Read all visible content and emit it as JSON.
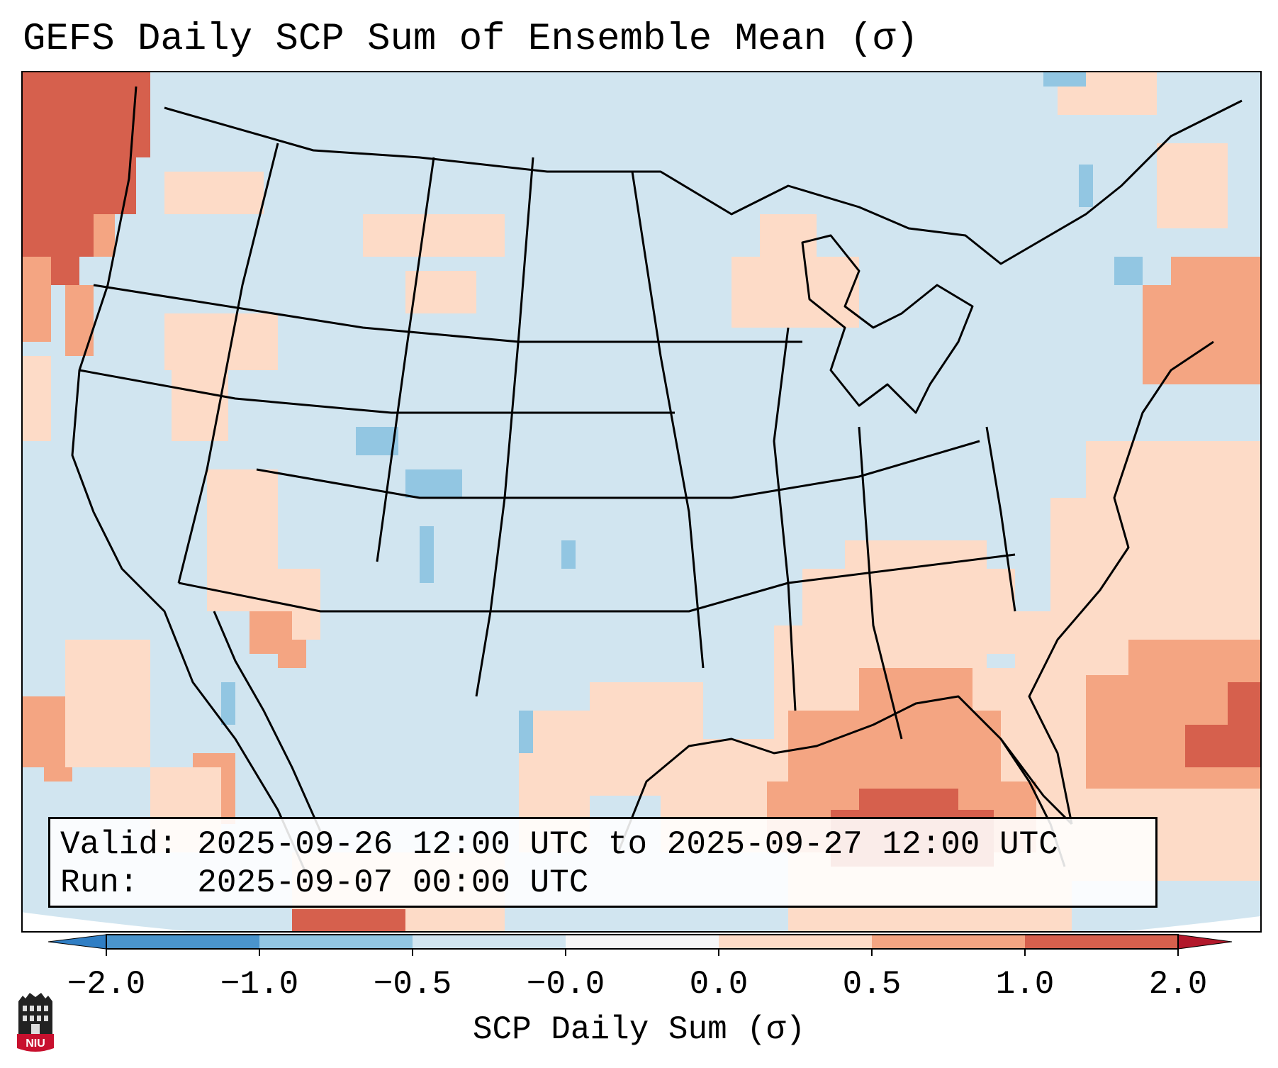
{
  "title": "GEFS Daily SCP Sum of Ensemble Mean (σ)",
  "info": {
    "valid_line": "Valid: 2025-09-26 12:00 UTC to 2025-09-27 12:00 UTC",
    "run_line": "Run:   2025-09-07 00:00 UTC"
  },
  "colorbar": {
    "label": "SCP Daily Sum (σ)",
    "ticks": [
      "−2.0",
      "−1.0",
      "−0.5",
      "−0.0",
      "0.0",
      "0.5",
      "1.0",
      "2.0"
    ],
    "colors": {
      "below_min": "#2f7ec4",
      "neg_2_1": "#4a94cc",
      "neg_1_05": "#92c6e2",
      "neg_05_0": "#d1e5f0",
      "zero": "#f7f7f7",
      "pos_0_05": "#fddbc7",
      "pos_05_1": "#f4a582",
      "pos_1_2": "#d6604d",
      "above_max": "#b2182b"
    }
  },
  "map": {
    "background": "#d1e5f0",
    "outside": "#ffffff",
    "boundary_color": "#000000"
  },
  "logo": {
    "text": "NIU",
    "color": "#c8102e"
  }
}
